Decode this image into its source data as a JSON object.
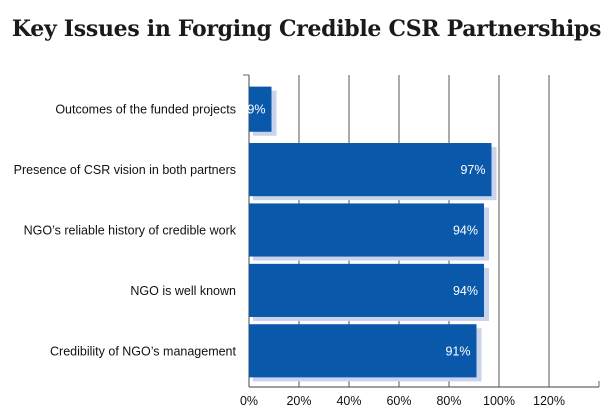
{
  "chart_data": {
    "type": "bar",
    "orientation": "horizontal",
    "title": "Key Issues in Forging Credible CSR Partnerships",
    "xlabel": "",
    "ylabel": "",
    "categories": [
      "Outcomes of the funded projects",
      "Presence of CSR vision in both partners",
      "NGO’s reliable history of credible work",
      "NGO is well known",
      "Credibility of NGO’s management"
    ],
    "values": [
      9,
      97,
      94,
      94,
      91
    ],
    "value_labels": [
      "9%",
      "97%",
      "94%",
      "94%",
      "91%"
    ],
    "xlim": [
      0,
      140
    ],
    "xticks": [
      0,
      20,
      40,
      60,
      80,
      100,
      120
    ],
    "xtick_labels": [
      "0%",
      "20%",
      "40%",
      "60%",
      "80%",
      "100%",
      "120%"
    ],
    "grid": "vertical",
    "legend": "none",
    "colors": {
      "bar": "#0A58AA",
      "bar_shadow": "#C9D3EC",
      "grid": "#555555",
      "value_text": "#ffffff"
    }
  }
}
